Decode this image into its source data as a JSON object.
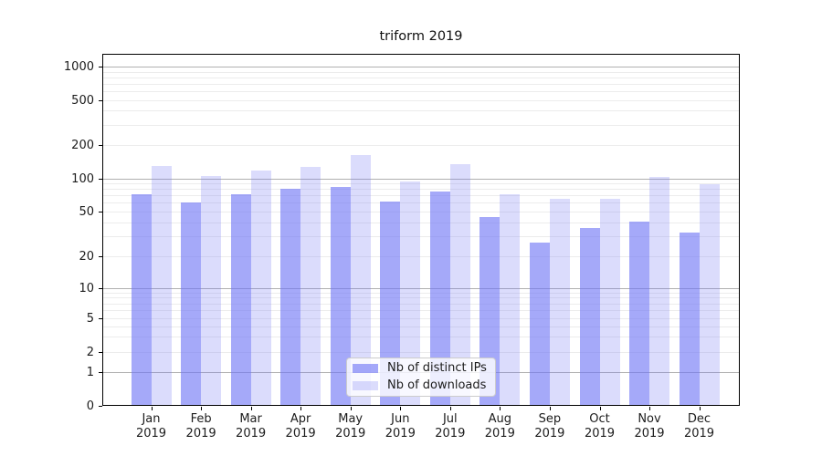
{
  "chart_data": {
    "type": "bar",
    "title": "triform 2019",
    "categories": [
      "Jan",
      "Feb",
      "Mar",
      "Apr",
      "May",
      "Jun",
      "Jul",
      "Aug",
      "Sep",
      "Oct",
      "Nov",
      "Dec"
    ],
    "category_year": "2019",
    "series": [
      {
        "name": "Nb of distinct IPs",
        "color": "rgba(110,116,245,0.62)",
        "values": [
          73,
          61,
          73,
          81,
          84,
          62,
          77,
          45,
          27,
          36,
          41,
          33
        ]
      },
      {
        "name": "Nb of downloads",
        "color": "rgba(110,116,245,0.25)",
        "values": [
          131,
          105,
          119,
          128,
          164,
          94,
          135,
          73,
          66,
          66,
          103,
          90
        ]
      }
    ],
    "y_axis": {
      "scale": "symlog",
      "tick_labels": [
        "0",
        "1",
        "2",
        "5",
        "10",
        "20",
        "50",
        "100",
        "200",
        "500",
        "1000"
      ],
      "major_gridline_values": [
        1,
        10,
        100,
        1000
      ],
      "minor_gridline_values": [
        2,
        3,
        4,
        5,
        6,
        7,
        8,
        9,
        20,
        30,
        40,
        50,
        60,
        70,
        80,
        90,
        200,
        300,
        400,
        500,
        600,
        700,
        800,
        900
      ]
    },
    "legend": {
      "position": "lower-center",
      "entries": [
        "Nb of distinct IPs",
        "Nb of downloads"
      ]
    },
    "grid": true
  },
  "colors": {
    "bar_base": "#6e74f5",
    "grid_major": "#b0b0b0",
    "grid_minor": "#ececec",
    "spine": "#000000",
    "text": "#1c1c1c",
    "legend_border": "#cccccc"
  }
}
